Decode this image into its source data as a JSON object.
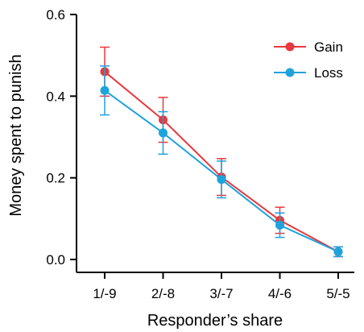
{
  "chart_data": {
    "type": "line",
    "xlabel": "Responder’s share",
    "ylabel": "Money spent to punish",
    "categories": [
      "1/-9",
      "2/-8",
      "3/-7",
      "4/-6",
      "5/-5"
    ],
    "ylim": [
      0,
      0.6
    ],
    "yticks": [
      "0.0",
      "0.2",
      "0.4",
      "0.6"
    ],
    "ytick_values": [
      0,
      0.2,
      0.4,
      0.6
    ],
    "grid": false,
    "legend_position": "top-right",
    "series": [
      {
        "name": "Gain",
        "color": "#e8383d",
        "values": [
          0.46,
          0.342,
          0.202,
          0.096,
          0.019
        ],
        "error": [
          0.06,
          0.055,
          0.045,
          0.032,
          0.012
        ]
      },
      {
        "name": "Loss",
        "color": "#1fa3dc",
        "values": [
          0.414,
          0.31,
          0.196,
          0.084,
          0.019
        ],
        "error": [
          0.06,
          0.052,
          0.045,
          0.03,
          0.012
        ]
      }
    ]
  }
}
